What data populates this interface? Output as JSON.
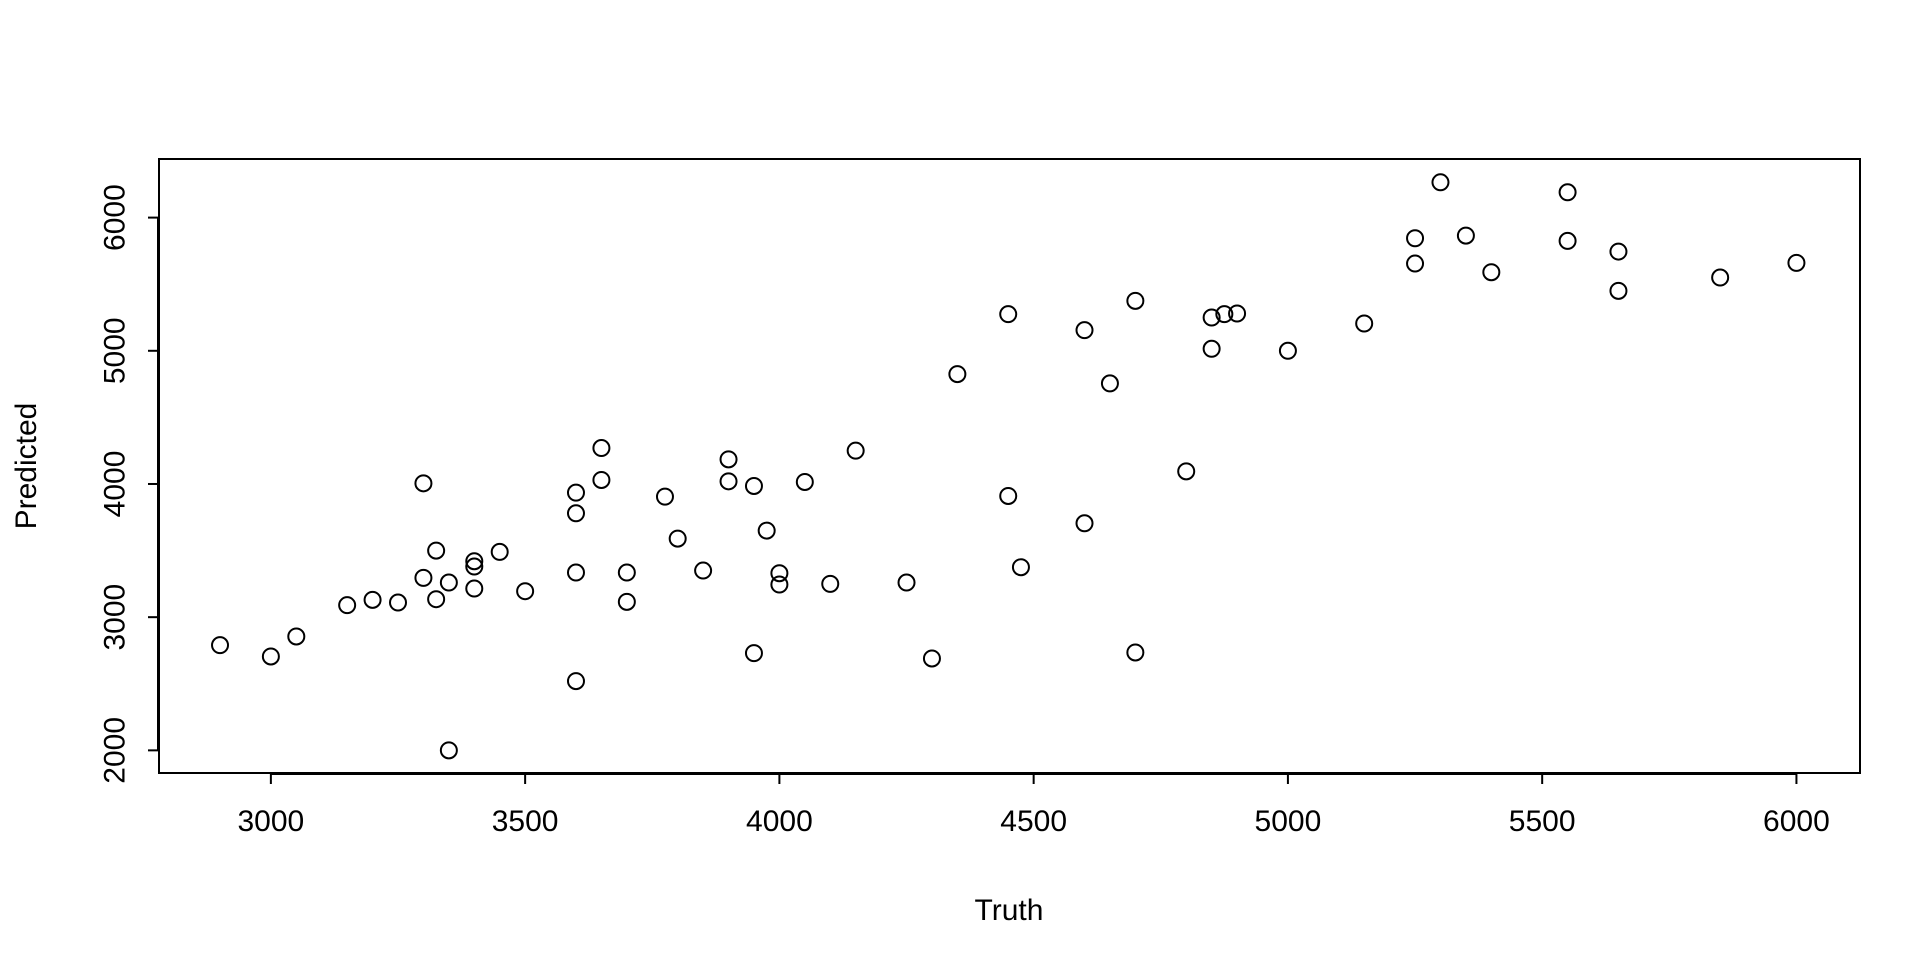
{
  "chart_data": {
    "type": "scatter",
    "title": "",
    "xlabel": "Truth",
    "ylabel": "Predicted",
    "xlim": [
      2780,
      6125
    ],
    "ylim": [
      1830,
      6440
    ],
    "xticks": [
      3000,
      3500,
      4000,
      4500,
      5000,
      5500,
      6000
    ],
    "yticks": [
      2000,
      3000,
      4000,
      5000,
      6000
    ],
    "xtick_labels": [
      "3000",
      "3500",
      "4000",
      "4500",
      "5000",
      "5500",
      "6000"
    ],
    "ytick_labels": [
      "2000",
      "3000",
      "4000",
      "5000",
      "6000"
    ],
    "grid": false,
    "legend": "none",
    "marker": "open-circle",
    "point_color": "#000000",
    "points": [
      [
        2900,
        2790
      ],
      [
        3000,
        2705
      ],
      [
        3050,
        2855
      ],
      [
        3150,
        3090
      ],
      [
        3200,
        3130
      ],
      [
        3250,
        3110
      ],
      [
        3300,
        4005
      ],
      [
        3300,
        3295
      ],
      [
        3325,
        3500
      ],
      [
        3325,
        3135
      ],
      [
        3350,
        3260
      ],
      [
        3350,
        2000
      ],
      [
        3400,
        3420
      ],
      [
        3400,
        3380
      ],
      [
        3400,
        3215
      ],
      [
        3450,
        3490
      ],
      [
        3500,
        3195
      ],
      [
        3600,
        3935
      ],
      [
        3600,
        3780
      ],
      [
        3600,
        3335
      ],
      [
        3600,
        2520
      ],
      [
        3650,
        4270
      ],
      [
        3650,
        4030
      ],
      [
        3700,
        3335
      ],
      [
        3700,
        3115
      ],
      [
        3775,
        3905
      ],
      [
        3800,
        3590
      ],
      [
        3850,
        3350
      ],
      [
        3900,
        4185
      ],
      [
        3900,
        4020
      ],
      [
        3950,
        3985
      ],
      [
        3950,
        2730
      ],
      [
        3975,
        3650
      ],
      [
        4000,
        3330
      ],
      [
        4000,
        3245
      ],
      [
        4050,
        4015
      ],
      [
        4100,
        3250
      ],
      [
        4150,
        4250
      ],
      [
        4250,
        3260
      ],
      [
        4300,
        2690
      ],
      [
        4350,
        4825
      ],
      [
        4450,
        5275
      ],
      [
        4450,
        3910
      ],
      [
        4475,
        3375
      ],
      [
        4600,
        5155
      ],
      [
        4600,
        3705
      ],
      [
        4650,
        4755
      ],
      [
        4700,
        5375
      ],
      [
        4700,
        2735
      ],
      [
        4800,
        4095
      ],
      [
        4850,
        5250
      ],
      [
        4850,
        5015
      ],
      [
        4875,
        5275
      ],
      [
        4900,
        5280
      ],
      [
        5000,
        5000
      ],
      [
        5150,
        5205
      ],
      [
        5250,
        5845
      ],
      [
        5250,
        5655
      ],
      [
        5300,
        6265
      ],
      [
        5350,
        5865
      ],
      [
        5400,
        5590
      ],
      [
        5550,
        6190
      ],
      [
        5550,
        5825
      ],
      [
        5650,
        5745
      ],
      [
        5650,
        5450
      ],
      [
        5850,
        5550
      ],
      [
        6000,
        5660
      ]
    ]
  }
}
